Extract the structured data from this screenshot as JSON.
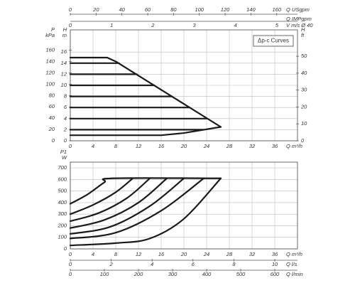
{
  "chart_data": [
    {
      "type": "line",
      "annotation": "Δp-c Curves",
      "color": "#1a1a1a",
      "smooth": false,
      "axes": [
        {
          "side": "bottom",
          "label": "Q m³/h",
          "lim": [
            0,
            40
          ],
          "ticks": [
            0,
            4,
            8,
            12,
            16,
            20,
            24,
            28,
            32,
            36
          ],
          "grid": true
        },
        {
          "side": "top",
          "label": "Q USgpm",
          "lim": [
            0,
            176.1
          ],
          "ticks": [
            0,
            20,
            40,
            60,
            80,
            100,
            120,
            140,
            160
          ]
        },
        {
          "side": "top-2",
          "label": "Q IMPgpm",
          "lim": [
            0,
            146.6
          ]
        },
        {
          "side": "top-3",
          "label": "V m/s Ø 40",
          "lim": [
            0,
            5.5
          ],
          "ticks": [
            0,
            1,
            2,
            3,
            4,
            5
          ]
        },
        {
          "side": "left",
          "label": [
            "H",
            "m"
          ],
          "lim": [
            0,
            20
          ],
          "ticks": [
            0,
            2,
            4,
            6,
            8,
            10,
            12,
            14,
            16
          ],
          "grid": true
        },
        {
          "side": "left-2",
          "label": [
            "P",
            "kPa"
          ],
          "lim": [
            0,
            196
          ],
          "ticks": [
            0,
            20,
            40,
            60,
            80,
            100,
            120,
            140,
            160
          ]
        },
        {
          "side": "right",
          "label": [
            "H",
            "ft"
          ],
          "lim": [
            0,
            65.6
          ],
          "ticks": [
            0,
            10,
            20,
            30,
            40,
            50
          ]
        }
      ],
      "series": [
        {
          "x": [
            0,
            6.5,
            8,
            26.5
          ],
          "values": [
            15,
            15,
            14.3,
            2.5
          ]
        },
        {
          "x": [
            0,
            8.6
          ],
          "values": [
            14,
            14
          ]
        },
        {
          "x": [
            0,
            11.7
          ],
          "values": [
            12,
            12
          ]
        },
        {
          "x": [
            0,
            14.8
          ],
          "values": [
            10,
            10
          ]
        },
        {
          "x": [
            0,
            17.9
          ],
          "values": [
            8,
            8
          ]
        },
        {
          "x": [
            0,
            21
          ],
          "values": [
            6,
            6
          ]
        },
        {
          "x": [
            0,
            24.1
          ],
          "values": [
            4,
            4
          ]
        },
        {
          "x": [
            0,
            23.5
          ],
          "values": [
            2,
            2
          ]
        },
        {
          "x": [
            0,
            16,
            20,
            26.5
          ],
          "values": [
            1,
            1,
            1.4,
            2.5
          ]
        }
      ]
    },
    {
      "type": "line",
      "color": "#1a1a1a",
      "smooth": true,
      "axes": [
        {
          "side": "bottom",
          "label": "Q m³/h",
          "lim": [
            0,
            40
          ],
          "ticks": [
            0,
            4,
            8,
            12,
            16,
            20,
            24,
            28,
            32,
            36
          ],
          "grid": true
        },
        {
          "side": "bottom-2",
          "label": "Q l/s",
          "lim": [
            0,
            11.11
          ],
          "ticks": [
            0,
            2,
            4,
            6,
            8,
            10
          ]
        },
        {
          "side": "bottom-3",
          "label": "Q l/min",
          "lim": [
            0,
            666.7
          ],
          "ticks": [
            0,
            100,
            200,
            300,
            400,
            500,
            600
          ]
        },
        {
          "side": "left",
          "label": [
            "P1",
            "W"
          ],
          "lim": [
            0,
            750
          ],
          "ticks": [
            0,
            100,
            200,
            300,
            400,
            500,
            600,
            700
          ],
          "grid": true
        }
      ],
      "series": [
        {
          "x": [
            0,
            3,
            6,
            7.5,
            26.5
          ],
          "values": [
            390,
            470,
            575,
            610,
            610
          ]
        },
        {
          "x": [
            0,
            4,
            8,
            11
          ],
          "values": [
            300,
            380,
            490,
            610
          ]
        },
        {
          "x": [
            0,
            5,
            10,
            14
          ],
          "values": [
            240,
            310,
            440,
            610
          ]
        },
        {
          "x": [
            0,
            6,
            12,
            17
          ],
          "values": [
            180,
            250,
            400,
            610
          ]
        },
        {
          "x": [
            0,
            7,
            14,
            20
          ],
          "values": [
            130,
            190,
            370,
            610
          ]
        },
        {
          "x": [
            0,
            8,
            16,
            23.5
          ],
          "values": [
            90,
            140,
            330,
            610
          ]
        },
        {
          "x": [
            0,
            8,
            14,
            20,
            26.5
          ],
          "values": [
            30,
            50,
            90,
            260,
            610
          ]
        }
      ]
    }
  ]
}
